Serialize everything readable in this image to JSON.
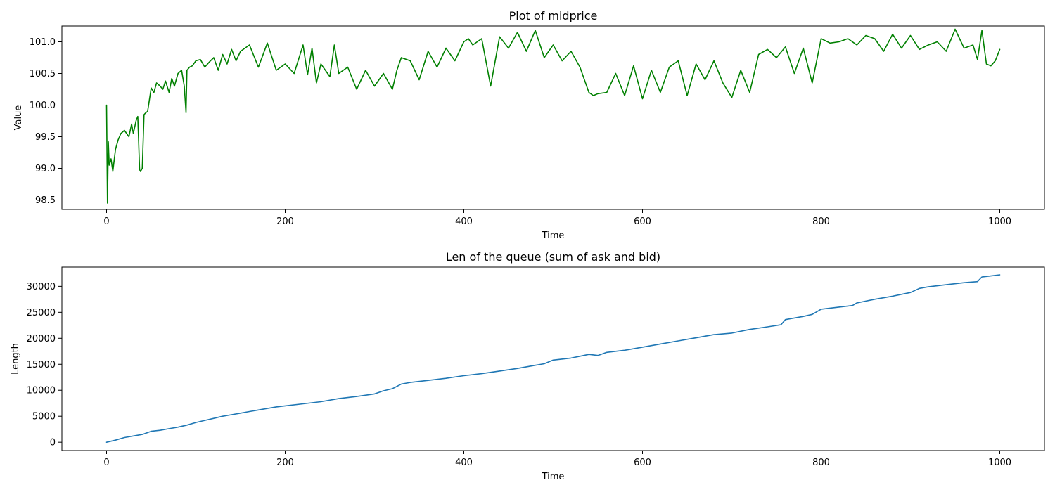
{
  "chart_data": [
    {
      "type": "line",
      "title": "Plot of midprice",
      "xlabel": "Time",
      "ylabel": "Value",
      "xlim": [
        -50,
        1050
      ],
      "ylim": [
        98.35,
        101.25
      ],
      "xticks": [
        0,
        200,
        400,
        600,
        800,
        1000
      ],
      "yticks": [
        98.5,
        99.0,
        99.5,
        100.0,
        100.5,
        101.0
      ],
      "xtick_labels": [
        "0",
        "200",
        "400",
        "600",
        "800",
        "1000"
      ],
      "ytick_labels": [
        "98.5",
        "99.0",
        "99.5",
        "100.0",
        "100.5",
        "101.0"
      ],
      "grid": false,
      "series": [
        {
          "color": "#008000",
          "x": [
            0,
            1,
            2,
            3,
            5,
            7,
            10,
            13,
            16,
            20,
            25,
            28,
            30,
            33,
            35,
            37,
            38,
            40,
            42,
            44,
            46,
            50,
            53,
            56,
            60,
            63,
            66,
            70,
            73,
            76,
            80,
            84,
            87,
            89,
            90,
            93,
            96,
            100,
            105,
            110,
            115,
            120,
            125,
            130,
            135,
            140,
            145,
            150,
            160,
            170,
            180,
            190,
            200,
            210,
            220,
            225,
            230,
            235,
            240,
            250,
            255,
            260,
            270,
            280,
            290,
            300,
            310,
            320,
            325,
            330,
            340,
            350,
            360,
            370,
            380,
            390,
            400,
            405,
            410,
            420,
            430,
            440,
            450,
            460,
            470,
            480,
            490,
            500,
            510,
            520,
            530,
            540,
            545,
            550,
            560,
            570,
            580,
            590,
            600,
            610,
            620,
            630,
            640,
            650,
            660,
            670,
            680,
            690,
            700,
            710,
            720,
            730,
            740,
            750,
            760,
            770,
            780,
            790,
            800,
            810,
            820,
            830,
            840,
            850,
            860,
            870,
            880,
            890,
            900,
            910,
            920,
            930,
            940,
            950,
            960,
            970,
            975,
            980,
            985,
            990,
            995,
            1000
          ],
          "y": [
            100.0,
            98.45,
            99.42,
            99.05,
            99.15,
            98.95,
            99.3,
            99.45,
            99.55,
            99.6,
            99.5,
            99.7,
            99.55,
            99.75,
            99.82,
            98.98,
            98.95,
            99.0,
            99.85,
            99.88,
            99.9,
            100.27,
            100.2,
            100.35,
            100.3,
            100.25,
            100.38,
            100.2,
            100.42,
            100.3,
            100.5,
            100.55,
            100.3,
            99.88,
            100.55,
            100.6,
            100.62,
            100.7,
            100.72,
            100.6,
            100.68,
            100.75,
            100.55,
            100.8,
            100.65,
            100.88,
            100.7,
            100.85,
            100.95,
            100.6,
            100.98,
            100.55,
            100.65,
            100.5,
            100.95,
            100.48,
            100.9,
            100.35,
            100.65,
            100.45,
            100.95,
            100.5,
            100.6,
            100.25,
            100.55,
            100.3,
            100.5,
            100.25,
            100.55,
            100.75,
            100.7,
            100.4,
            100.85,
            100.6,
            100.9,
            100.7,
            101.0,
            101.05,
            100.95,
            101.05,
            100.3,
            101.08,
            100.9,
            101.15,
            100.85,
            101.18,
            100.75,
            100.95,
            100.7,
            100.85,
            100.6,
            100.2,
            100.15,
            100.18,
            100.2,
            100.5,
            100.15,
            100.62,
            100.1,
            100.55,
            100.2,
            100.6,
            100.7,
            100.15,
            100.65,
            100.4,
            100.7,
            100.35,
            100.12,
            100.55,
            100.2,
            100.8,
            100.88,
            100.75,
            100.92,
            100.5,
            100.9,
            100.35,
            101.05,
            100.98,
            101.0,
            101.05,
            100.95,
            101.1,
            101.05,
            100.85,
            101.12,
            100.9,
            101.1,
            100.88,
            100.95,
            101.0,
            100.85,
            101.2,
            100.9,
            100.95,
            100.72,
            101.18,
            100.65,
            100.62,
            100.7,
            100.88
          ]
        }
      ]
    },
    {
      "type": "line",
      "title": "Len of the queue (sum of ask and bid)",
      "xlabel": "Time",
      "ylabel": "Length",
      "xlim": [
        -50,
        1050
      ],
      "ylim": [
        -1600,
        33700
      ],
      "xticks": [
        0,
        200,
        400,
        600,
        800,
        1000
      ],
      "yticks": [
        0,
        5000,
        10000,
        15000,
        20000,
        25000,
        30000
      ],
      "xtick_labels": [
        "0",
        "200",
        "400",
        "600",
        "800",
        "1000"
      ],
      "ytick_labels": [
        "0",
        "5000",
        "10000",
        "15000",
        "20000",
        "25000",
        "30000"
      ],
      "grid": false,
      "series": [
        {
          "color": "#1f77b4",
          "x": [
            0,
            10,
            20,
            30,
            40,
            50,
            60,
            70,
            80,
            90,
            100,
            110,
            120,
            130,
            140,
            150,
            160,
            170,
            180,
            190,
            200,
            220,
            240,
            260,
            280,
            300,
            310,
            320,
            330,
            340,
            360,
            380,
            400,
            420,
            440,
            460,
            480,
            490,
            500,
            520,
            540,
            550,
            560,
            580,
            600,
            620,
            640,
            660,
            680,
            700,
            720,
            740,
            755,
            760,
            780,
            790,
            800,
            820,
            835,
            840,
            860,
            880,
            900,
            910,
            920,
            940,
            960,
            975,
            980,
            990,
            1000
          ],
          "y": [
            0,
            400,
            900,
            1200,
            1500,
            2100,
            2300,
            2600,
            2900,
            3300,
            3800,
            4200,
            4600,
            5000,
            5300,
            5600,
            5900,
            6200,
            6500,
            6800,
            7000,
            7400,
            7800,
            8400,
            8800,
            9300,
            9900,
            10300,
            11200,
            11500,
            11900,
            12300,
            12800,
            13200,
            13700,
            14200,
            14800,
            15100,
            15800,
            16200,
            16900,
            16700,
            17300,
            17700,
            18300,
            18900,
            19500,
            20100,
            20700,
            21000,
            21700,
            22200,
            22600,
            23600,
            24200,
            24600,
            25600,
            26000,
            26300,
            26800,
            27500,
            28100,
            28800,
            29600,
            29900,
            30300,
            30700,
            30900,
            31800,
            32000,
            32200
          ]
        }
      ]
    }
  ]
}
